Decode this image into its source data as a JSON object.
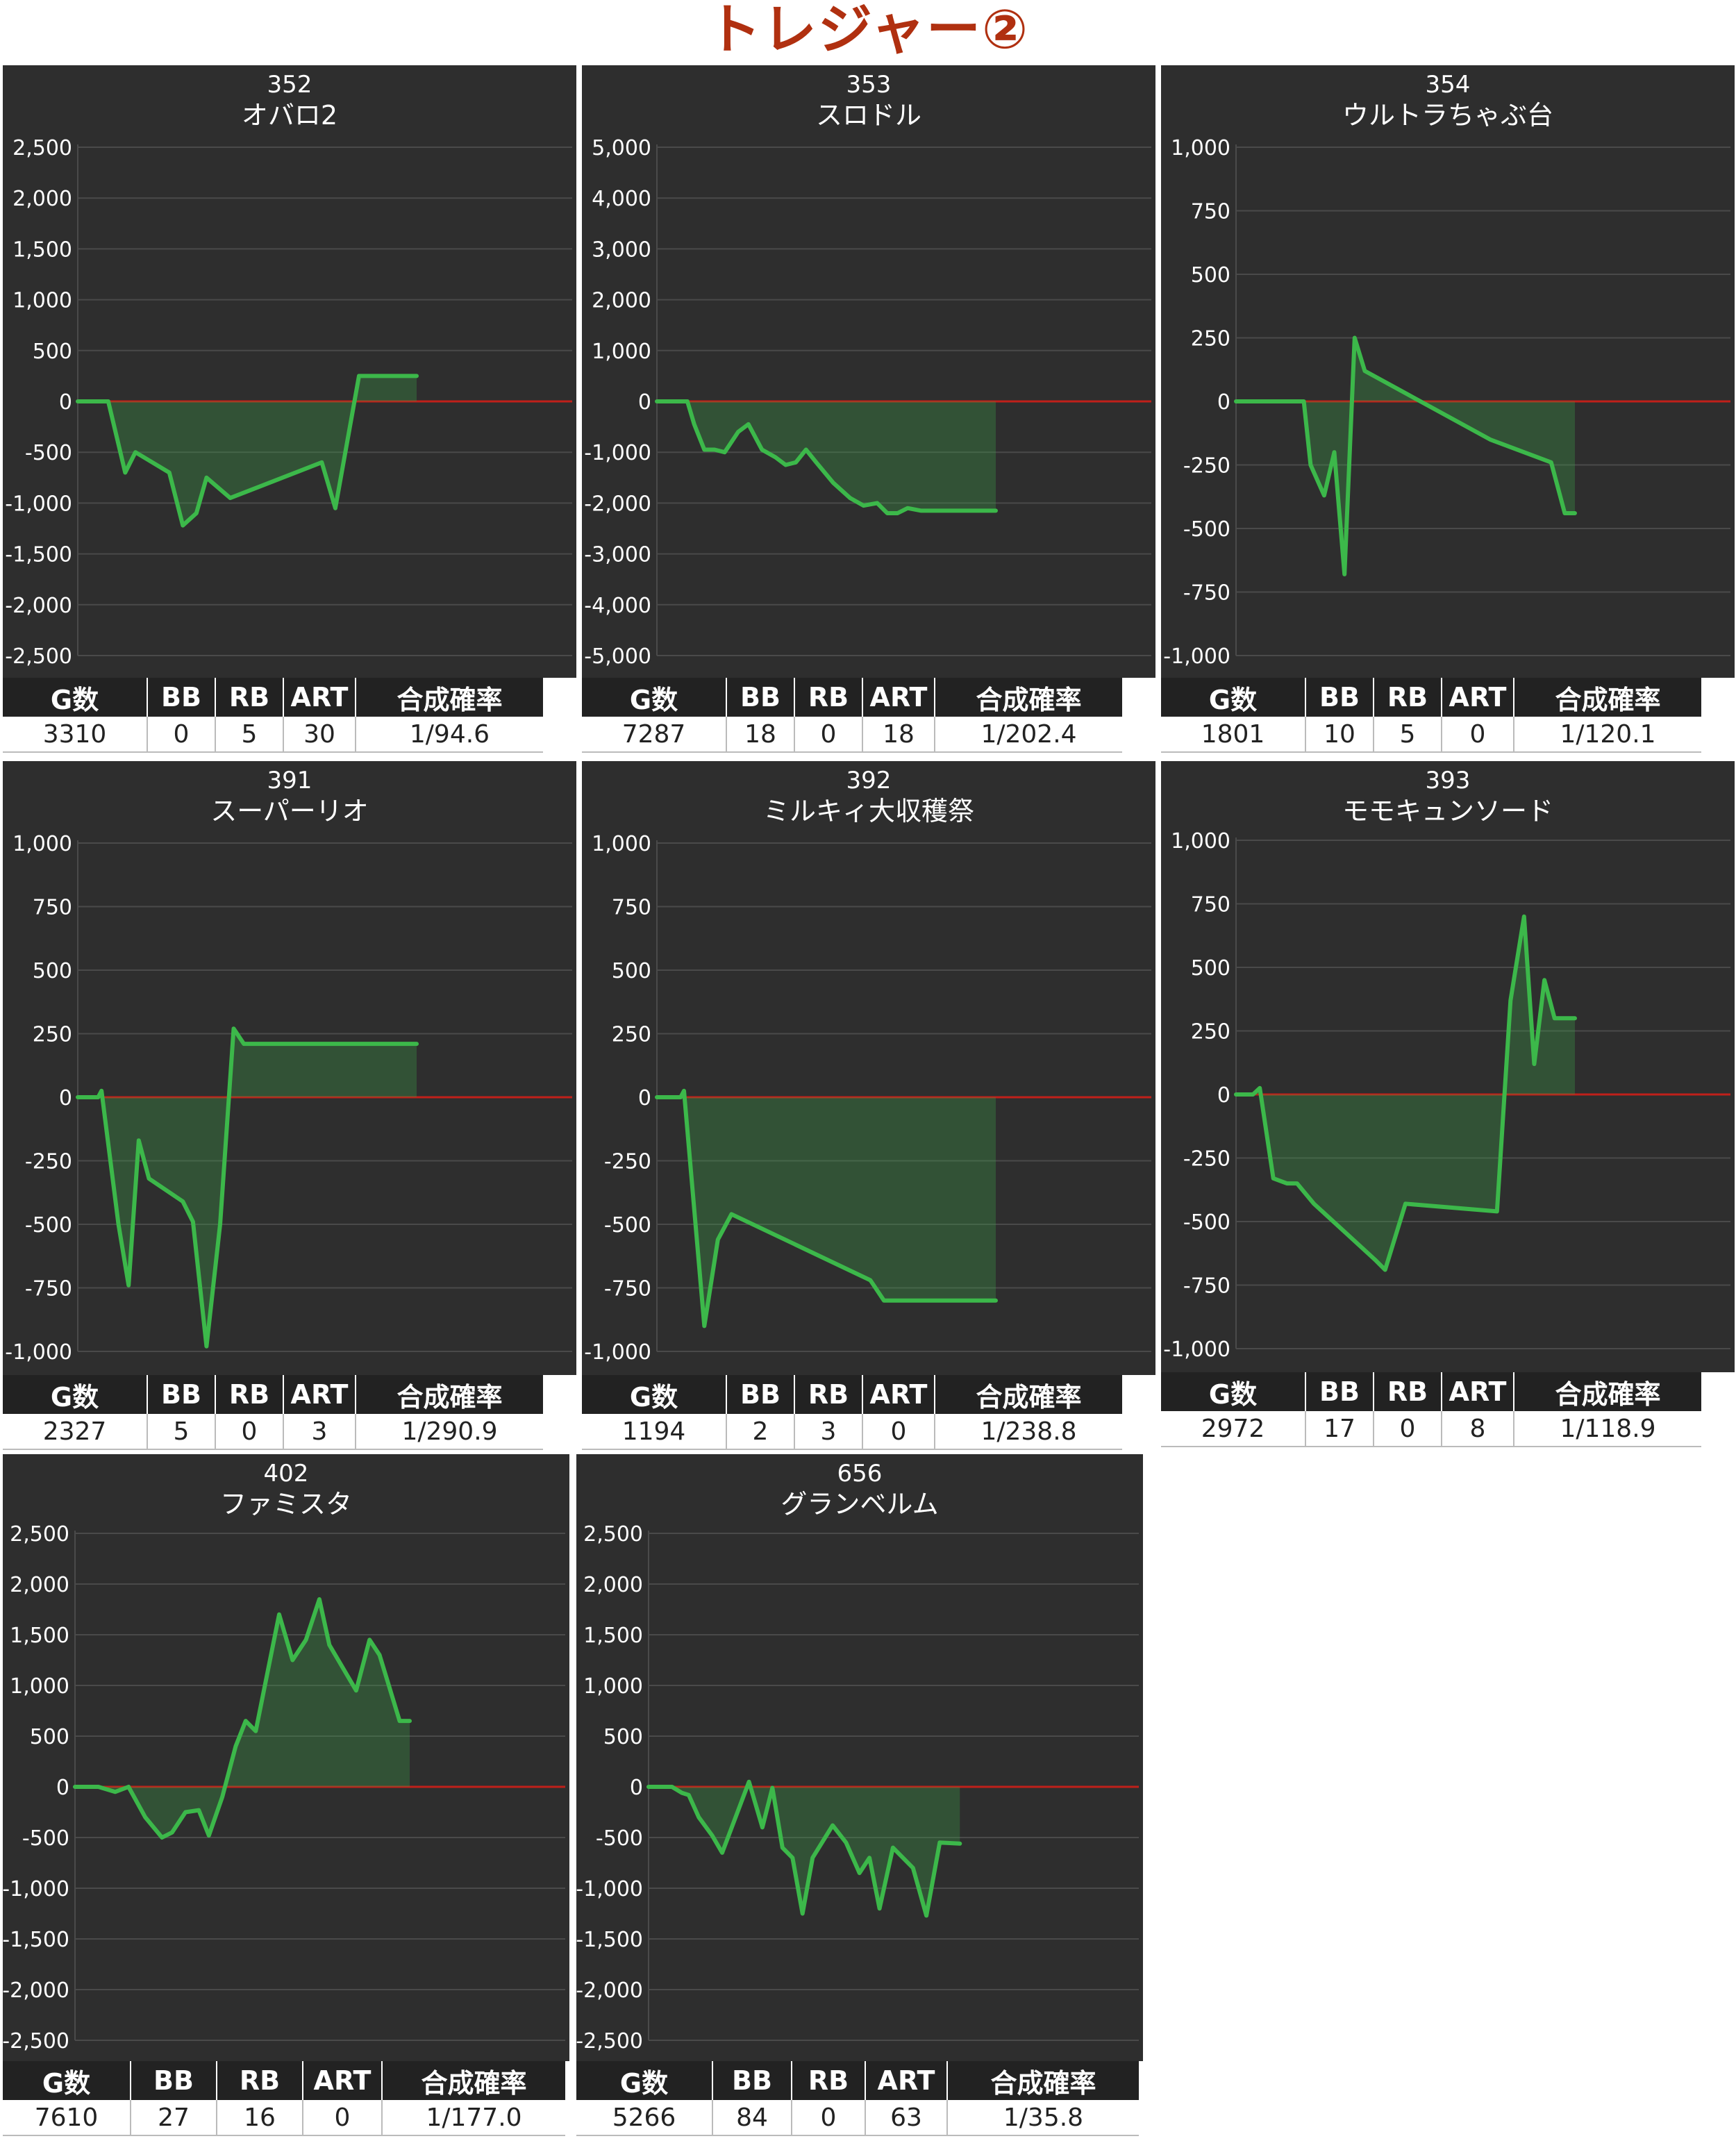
{
  "title": "トレジャー②",
  "colors": {
    "panel_bg": "#2e2e2e",
    "grid": "#4a4a4a",
    "zero_line": "#c0201a",
    "series_line": "#3cb84a",
    "series_fill": "rgba(60,160,70,0.32)",
    "title": "#b03010"
  },
  "stats_headers": [
    "G数",
    "BB",
    "RB",
    "ART",
    "合成確率"
  ],
  "chart_data": [
    {
      "type": "area",
      "number": "352",
      "name": "オバロ2",
      "ylim": [
        -2500,
        2500
      ],
      "yticks": [
        2500,
        2000,
        1500,
        1000,
        500,
        0,
        -500,
        -1000,
        -1500,
        -2000,
        -2500
      ],
      "ytick_labels": [
        "2,500",
        "2,000",
        "1,500",
        "1,000",
        "500",
        "0",
        "-500",
        "-1,000",
        "-1,500",
        "-2,000",
        "-2,500"
      ],
      "xlim": [
        0,
        100
      ],
      "points": [
        [
          0,
          0
        ],
        [
          9,
          0
        ],
        [
          14,
          -700
        ],
        [
          17,
          -500
        ],
        [
          27,
          -700
        ],
        [
          31,
          -1220
        ],
        [
          35,
          -1100
        ],
        [
          38,
          -750
        ],
        [
          45,
          -950
        ],
        [
          72,
          -600
        ],
        [
          76,
          -1050
        ],
        [
          83,
          250
        ],
        [
          100,
          250
        ]
      ],
      "stats": {
        "games": "3310",
        "bb": "0",
        "rb": "5",
        "art": "30",
        "prob": "1/94.6"
      }
    },
    {
      "type": "area",
      "number": "353",
      "name": "スロドル",
      "ylim": [
        -5000,
        5000
      ],
      "yticks": [
        5000,
        4000,
        3000,
        2000,
        1000,
        0,
        -1000,
        -2000,
        -3000,
        -4000,
        -5000
      ],
      "ytick_labels": [
        "5,000",
        "4,000",
        "3,000",
        "2,000",
        "1,000",
        "0",
        "-1,000",
        "-2,000",
        "-3,000",
        "-4,000",
        "-5,000"
      ],
      "xlim": [
        0,
        100
      ],
      "points": [
        [
          0,
          0
        ],
        [
          9,
          0
        ],
        [
          11,
          -450
        ],
        [
          14,
          -950
        ],
        [
          17,
          -950
        ],
        [
          20,
          -1000
        ],
        [
          24,
          -600
        ],
        [
          27,
          -450
        ],
        [
          31,
          -950
        ],
        [
          35,
          -1100
        ],
        [
          38,
          -1250
        ],
        [
          41,
          -1200
        ],
        [
          44,
          -950
        ],
        [
          47,
          -1200
        ],
        [
          52,
          -1600
        ],
        [
          57,
          -1900
        ],
        [
          61,
          -2050
        ],
        [
          65,
          -2000
        ],
        [
          68,
          -2200
        ],
        [
          71,
          -2200
        ],
        [
          74,
          -2100
        ],
        [
          78,
          -2150
        ],
        [
          100,
          -2150
        ]
      ],
      "stats": {
        "games": "7287",
        "bb": "18",
        "rb": "0",
        "art": "18",
        "prob": "1/202.4"
      }
    },
    {
      "type": "area",
      "number": "354",
      "name": "ウルトラちゃぶ台",
      "ylim": [
        -1000,
        1000
      ],
      "yticks": [
        1000,
        750,
        500,
        250,
        0,
        -250,
        -500,
        -750,
        -1000
      ],
      "ytick_labels": [
        "1,000",
        "750",
        "500",
        "250",
        "0",
        "-250",
        "-500",
        "-750",
        "-1,000"
      ],
      "xlim": [
        0,
        100
      ],
      "points": [
        [
          0,
          0
        ],
        [
          20,
          0
        ],
        [
          22,
          -250
        ],
        [
          26,
          -370
        ],
        [
          29,
          -200
        ],
        [
          32,
          -680
        ],
        [
          35,
          250
        ],
        [
          38,
          120
        ],
        [
          75,
          -150
        ],
        [
          93,
          -240
        ],
        [
          97,
          -440
        ],
        [
          100,
          -440
        ]
      ],
      "stats": {
        "games": "1801",
        "bb": "10",
        "rb": "5",
        "art": "0",
        "prob": "1/120.1"
      }
    },
    {
      "type": "area",
      "number": "391",
      "name": "スーパーリオ",
      "ylim": [
        -1000,
        1000
      ],
      "yticks": [
        1000,
        750,
        500,
        250,
        0,
        -250,
        -500,
        -750,
        -1000
      ],
      "ytick_labels": [
        "1,000",
        "750",
        "500",
        "250",
        "0",
        "-250",
        "-500",
        "-750",
        "-1,000"
      ],
      "xlim": [
        0,
        100
      ],
      "points": [
        [
          0,
          0
        ],
        [
          6,
          0
        ],
        [
          7,
          25
        ],
        [
          12,
          -500
        ],
        [
          15,
          -740
        ],
        [
          18,
          -170
        ],
        [
          21,
          -320
        ],
        [
          31,
          -410
        ],
        [
          34,
          -490
        ],
        [
          38,
          -980
        ],
        [
          42,
          -500
        ],
        [
          46,
          270
        ],
        [
          49,
          210
        ],
        [
          100,
          210
        ]
      ],
      "stats": {
        "games": "2327",
        "bb": "5",
        "rb": "0",
        "art": "3",
        "prob": "1/290.9"
      }
    },
    {
      "type": "area",
      "number": "392",
      "name": "ミルキィ大収穫祭",
      "ylim": [
        -1000,
        1000
      ],
      "yticks": [
        1000,
        750,
        500,
        250,
        0,
        -250,
        -500,
        -750,
        -1000
      ],
      "ytick_labels": [
        "1,000",
        "750",
        "500",
        "250",
        "0",
        "-250",
        "-500",
        "-750",
        "-1,000"
      ],
      "xlim": [
        0,
        100
      ],
      "points": [
        [
          0,
          0
        ],
        [
          7,
          0
        ],
        [
          8,
          25
        ],
        [
          14,
          -900
        ],
        [
          18,
          -560
        ],
        [
          22,
          -460
        ],
        [
          63,
          -720
        ],
        [
          67,
          -800
        ],
        [
          100,
          -800
        ]
      ],
      "stats": {
        "games": "1194",
        "bb": "2",
        "rb": "3",
        "art": "0",
        "prob": "1/238.8"
      }
    },
    {
      "type": "area",
      "number": "393",
      "name": "モモキュンソード",
      "ylim": [
        -1000,
        1000
      ],
      "yticks": [
        1000,
        750,
        500,
        250,
        0,
        -250,
        -500,
        -750,
        -1000
      ],
      "ytick_labels": [
        "1,000",
        "750",
        "500",
        "250",
        "0",
        "-250",
        "-500",
        "-750",
        "-1,000"
      ],
      "xlim": [
        0,
        100
      ],
      "points": [
        [
          0,
          0
        ],
        [
          5,
          0
        ],
        [
          7,
          25
        ],
        [
          11,
          -330
        ],
        [
          15,
          -350
        ],
        [
          18,
          -350
        ],
        [
          23,
          -430
        ],
        [
          41,
          -650
        ],
        [
          44,
          -690
        ],
        [
          50,
          -430
        ],
        [
          77,
          -460
        ],
        [
          81,
          370
        ],
        [
          85,
          700
        ],
        [
          88,
          120
        ],
        [
          91,
          450
        ],
        [
          94,
          300
        ],
        [
          100,
          300
        ]
      ],
      "stats": {
        "games": "2972",
        "bb": "17",
        "rb": "0",
        "art": "8",
        "prob": "1/118.9"
      }
    },
    {
      "type": "area",
      "number": "402",
      "name": "ファミスタ",
      "ylim": [
        -2500,
        2500
      ],
      "yticks": [
        2500,
        2000,
        1500,
        1000,
        500,
        0,
        -500,
        -1000,
        -1500,
        -2000,
        -2500
      ],
      "ytick_labels": [
        "2,500",
        "2,000",
        "1,500",
        "1,000",
        "500",
        "0",
        "-500",
        "-1,000",
        "-1,500",
        "-2,000",
        "-2,500"
      ],
      "xlim": [
        0,
        100
      ],
      "points": [
        [
          0,
          0
        ],
        [
          7,
          0
        ],
        [
          12,
          -50
        ],
        [
          16,
          0
        ],
        [
          21,
          -300
        ],
        [
          26,
          -500
        ],
        [
          29,
          -450
        ],
        [
          33,
          -250
        ],
        [
          37,
          -230
        ],
        [
          40,
          -480
        ],
        [
          44,
          -100
        ],
        [
          48,
          400
        ],
        [
          51,
          650
        ],
        [
          54,
          550
        ],
        [
          61,
          1700
        ],
        [
          65,
          1250
        ],
        [
          69,
          1450
        ],
        [
          73,
          1850
        ],
        [
          76,
          1400
        ],
        [
          84,
          950
        ],
        [
          88,
          1450
        ],
        [
          91,
          1300
        ],
        [
          97,
          650
        ],
        [
          100,
          650
        ]
      ],
      "stats": {
        "games": "7610",
        "bb": "27",
        "rb": "16",
        "art": "0",
        "prob": "1/177.0"
      }
    },
    {
      "type": "area",
      "number": "656",
      "name": "グランベルム",
      "ylim": [
        -2500,
        2500
      ],
      "yticks": [
        2500,
        2000,
        1500,
        1000,
        500,
        0,
        -500,
        -1000,
        -1500,
        -2000,
        -2500
      ],
      "ytick_labels": [
        "2,500",
        "2,000",
        "1,500",
        "1,000",
        "500",
        "0",
        "-500",
        "-1,000",
        "-1,500",
        "-2,000",
        "-2,500"
      ],
      "xlim": [
        0,
        100
      ],
      "points": [
        [
          0,
          0
        ],
        [
          7,
          0
        ],
        [
          10,
          -60
        ],
        [
          12,
          -80
        ],
        [
          15,
          -300
        ],
        [
          19,
          -480
        ],
        [
          22,
          -650
        ],
        [
          26,
          -300
        ],
        [
          30,
          50
        ],
        [
          34,
          -400
        ],
        [
          37,
          -10
        ],
        [
          40,
          -600
        ],
        [
          43,
          -700
        ],
        [
          46,
          -1250
        ],
        [
          49,
          -700
        ],
        [
          55,
          -380
        ],
        [
          59,
          -550
        ],
        [
          63,
          -850
        ],
        [
          66,
          -700
        ],
        [
          69,
          -1200
        ],
        [
          73,
          -600
        ],
        [
          79,
          -800
        ],
        [
          83,
          -1270
        ],
        [
          87,
          -550
        ],
        [
          93,
          -560
        ]
      ],
      "stats": {
        "games": "5266",
        "bb": "84",
        "rb": "0",
        "art": "63",
        "prob": "1/35.8"
      }
    }
  ]
}
